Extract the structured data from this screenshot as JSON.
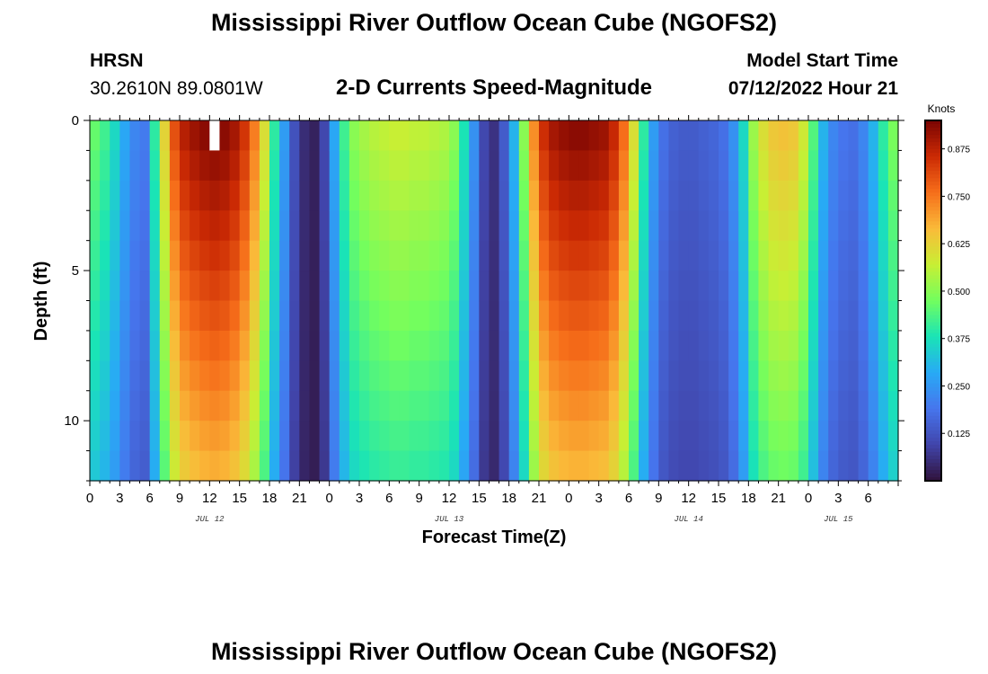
{
  "header": {
    "title": "Mississippi River Outflow Ocean Cube (NGOFS2)",
    "station": "HRSN",
    "coords": "30.2610N  89.0801W",
    "plot_title": "2-D Currents Speed-Magnitude",
    "model_start_label": "Model Start Time",
    "model_start_value": "07/12/2022 Hour 21"
  },
  "footer": {
    "title": "Mississippi River Outflow Ocean Cube (NGOFS2)"
  },
  "colors": {
    "background": "#ffffff",
    "missing_cell": "#ffffff"
  },
  "chart_data": {
    "type": "heatmap",
    "title": "2-D Currents Speed-Magnitude",
    "xlabel": "Forecast Time(Z)",
    "ylabel": "Depth (ft)",
    "colorbar_label": "Knots",
    "colorbar_ticks": [
      "0.125",
      "0.250",
      "0.375",
      "0.500",
      "0.625",
      "0.750",
      "0.875"
    ],
    "colorbar_range": [
      0,
      0.95
    ],
    "x_range_hours": [
      0,
      81
    ],
    "x_tick_labels": [
      "0",
      "3",
      "6",
      "9",
      "12",
      "15",
      "18",
      "21",
      "0",
      "3",
      "6",
      "9",
      "12",
      "15",
      "18",
      "21",
      "0",
      "3",
      "6",
      "9",
      "12",
      "15",
      "18",
      "21",
      "0",
      "3",
      "6"
    ],
    "x_tick_hours": [
      0,
      3,
      6,
      9,
      12,
      15,
      18,
      21,
      24,
      27,
      30,
      33,
      36,
      39,
      42,
      45,
      48,
      51,
      54,
      57,
      60,
      63,
      66,
      69,
      72,
      75,
      78
    ],
    "day_labels": [
      {
        "label": "JUL 12",
        "hour": 12
      },
      {
        "label": "JUL 13",
        "hour": 36
      },
      {
        "label": "JUL 14",
        "hour": 60
      },
      {
        "label": "JUL 15",
        "hour": 75
      }
    ],
    "y_range": [
      0,
      12
    ],
    "y_tick_labels": [
      "0",
      "5",
      "10"
    ],
    "y_tick_values": [
      0,
      5,
      10
    ],
    "n_depth_levels": 12,
    "surface_speed_by_hour": [
      0.46,
      0.42,
      0.36,
      0.28,
      0.22,
      0.2,
      0.4,
      0.62,
      0.8,
      0.88,
      0.91,
      0.93,
      0.94,
      0.93,
      0.9,
      0.84,
      0.74,
      0.6,
      0.4,
      0.26,
      0.12,
      0.05,
      0.03,
      0.1,
      0.28,
      0.42,
      0.5,
      0.53,
      0.55,
      0.56,
      0.57,
      0.57,
      0.56,
      0.56,
      0.55,
      0.54,
      0.5,
      0.38,
      0.24,
      0.1,
      0.06,
      0.14,
      0.3,
      0.5,
      0.72,
      0.85,
      0.9,
      0.92,
      0.93,
      0.93,
      0.92,
      0.91,
      0.86,
      0.76,
      0.6,
      0.4,
      0.26,
      0.18,
      0.15,
      0.14,
      0.14,
      0.15,
      0.16,
      0.18,
      0.24,
      0.36,
      0.52,
      0.6,
      0.64,
      0.65,
      0.64,
      0.58,
      0.44,
      0.3,
      0.22,
      0.19,
      0.18,
      0.22,
      0.3,
      0.4,
      0.48
    ],
    "depth_decay_per_level": 0.025,
    "missing_cells": [
      {
        "hour": 12,
        "level": 0
      }
    ]
  }
}
